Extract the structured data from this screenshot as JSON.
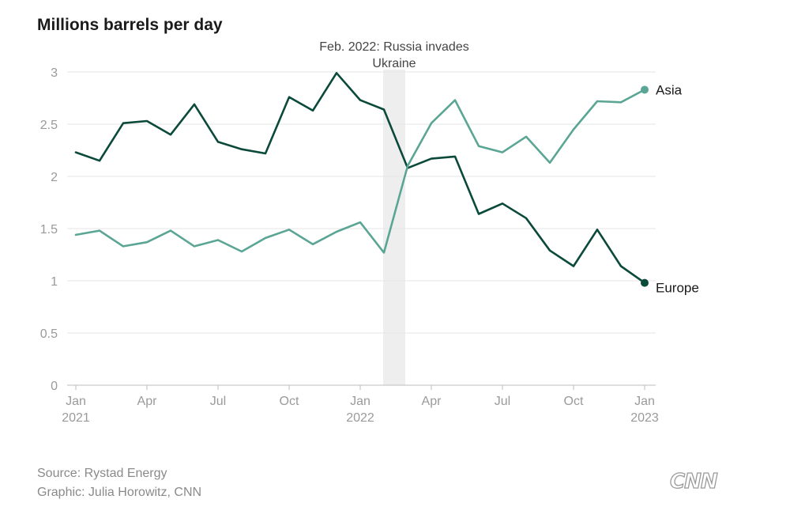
{
  "chart_data": {
    "type": "line",
    "title": "Millions barrels per day",
    "ylim": [
      0,
      3
    ],
    "yticks": [
      0,
      0.5,
      1,
      1.5,
      2,
      2.5,
      3
    ],
    "ytick_labels": [
      "0",
      "0.5",
      "1",
      "1.5",
      "2",
      "2.5",
      "3"
    ],
    "xticks": [
      {
        "index": 0,
        "month": "Jan",
        "year": "2021"
      },
      {
        "index": 3,
        "month": "Apr",
        "year": ""
      },
      {
        "index": 6,
        "month": "Jul",
        "year": ""
      },
      {
        "index": 9,
        "month": "Oct",
        "year": ""
      },
      {
        "index": 12,
        "month": "Jan",
        "year": "2022"
      },
      {
        "index": 15,
        "month": "Apr",
        "year": ""
      },
      {
        "index": 18,
        "month": "Jul",
        "year": ""
      },
      {
        "index": 21,
        "month": "Oct",
        "year": ""
      },
      {
        "index": 24,
        "month": "Jan",
        "year": "2023"
      }
    ],
    "x": [
      "Jan 2021",
      "Feb 2021",
      "Mar 2021",
      "Apr 2021",
      "May 2021",
      "Jun 2021",
      "Jul 2021",
      "Aug 2021",
      "Sep 2021",
      "Oct 2021",
      "Nov 2021",
      "Dec 2021",
      "Jan 2022",
      "Feb 2022",
      "Mar 2022",
      "Apr 2022",
      "May 2022",
      "Jun 2022",
      "Jul 2022",
      "Aug 2022",
      "Sep 2022",
      "Oct 2022",
      "Nov 2022",
      "Dec 2022",
      "Jan 2023"
    ],
    "series": [
      {
        "name": "Europe",
        "color": "#0b4a3a",
        "values": [
          2.23,
          2.15,
          2.51,
          2.53,
          2.4,
          2.69,
          2.33,
          2.26,
          2.22,
          2.76,
          2.63,
          2.99,
          2.73,
          2.64,
          2.08,
          2.17,
          2.19,
          1.64,
          1.74,
          1.6,
          1.29,
          1.14,
          1.49,
          1.14,
          0.98
        ]
      },
      {
        "name": "Asia",
        "color": "#5aa593",
        "values": [
          1.44,
          1.48,
          1.33,
          1.37,
          1.48,
          1.33,
          1.39,
          1.28,
          1.41,
          1.49,
          1.35,
          1.47,
          1.56,
          1.27,
          2.1,
          2.51,
          2.73,
          2.29,
          2.23,
          2.38,
          2.13,
          2.45,
          2.72,
          2.71,
          2.83
        ]
      }
    ],
    "annotation": {
      "line1": "Feb. 2022: Russia invades",
      "line2": "Ukraine",
      "x_index": 13
    },
    "grid": true,
    "shade_color": "#eeeeee",
    "grid_color": "#e6e6e6",
    "tick_color": "#9a9a9a"
  },
  "footer": {
    "source": "Source: Rystad Energy",
    "credit": "Graphic: Julia Horowitz, CNN",
    "logo": "CNN"
  }
}
